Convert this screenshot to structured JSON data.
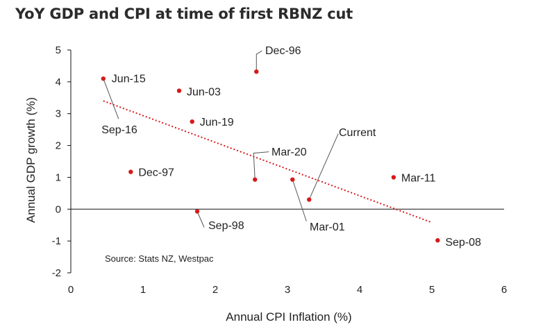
{
  "title": "YoY GDP and CPI at time of first RBNZ cut",
  "chart_data": {
    "type": "scatter",
    "title": "YoY GDP and CPI at time of first RBNZ cut",
    "xlabel": "Annual CPI Inflation (%)",
    "ylabel": "Annual GDP growth (%)",
    "xlim": [
      0,
      6
    ],
    "ylim": [
      -2,
      5
    ],
    "xticks": [
      0,
      1,
      2,
      3,
      4,
      5,
      6
    ],
    "yticks": [
      5,
      4,
      3,
      2,
      1,
      0,
      -1,
      -2
    ],
    "grid": false,
    "source": "Source: Stats NZ, Westpac",
    "points": [
      {
        "label": "Jun-15",
        "x": 0.45,
        "y": 4.1
      },
      {
        "label": "Sep-16",
        "x": 0.45,
        "y": 4.1
      },
      {
        "label": "Jun-03",
        "x": 1.5,
        "y": 3.72
      },
      {
        "label": "Jun-19",
        "x": 1.68,
        "y": 2.75
      },
      {
        "label": "Dec-97",
        "x": 0.83,
        "y": 1.17
      },
      {
        "label": "Sep-98",
        "x": 1.75,
        "y": -0.07
      },
      {
        "label": "Dec-96",
        "x": 2.57,
        "y": 4.32
      },
      {
        "label": "Mar-20",
        "x": 2.55,
        "y": 0.93
      },
      {
        "label": "Mar-01",
        "x": 3.07,
        "y": 0.93
      },
      {
        "label": "Current",
        "x": 3.3,
        "y": 0.3
      },
      {
        "label": "Mar-11",
        "x": 4.47,
        "y": 1.0
      },
      {
        "label": "Sep-08",
        "x": 5.08,
        "y": -0.98
      }
    ],
    "trendline": {
      "style": "dotted",
      "x": [
        0.45,
        5.0
      ],
      "y": [
        3.4,
        -0.42
      ]
    },
    "colors": {
      "points": "#d7191c",
      "trendline": "#d7191c",
      "axis": "#111111"
    }
  }
}
